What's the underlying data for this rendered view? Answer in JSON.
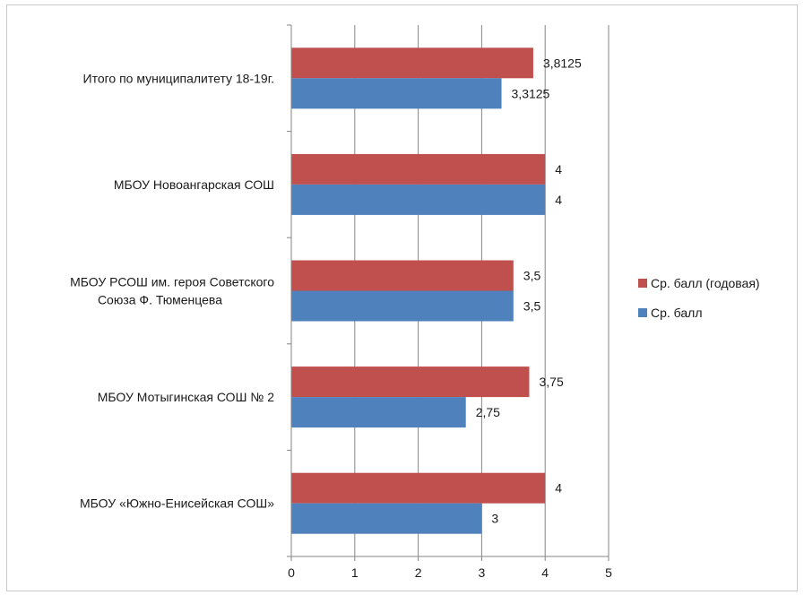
{
  "chart_data": {
    "type": "bar",
    "orientation": "horizontal",
    "categories": [
      [
        "Итого по муниципалитету 18-19г."
      ],
      [
        "МБОУ Новоангарская СОШ"
      ],
      [
        "МБОУ РСОШ им. героя Советского",
        "Союза Ф. Тюменцева"
      ],
      [
        "МБОУ Мотыгинская СОШ  № 2"
      ],
      [
        "МБОУ «Южно-Енисейская СОШ»"
      ]
    ],
    "series": [
      {
        "name": "Ср. балл (годовая)",
        "color": "#c0504d",
        "values": [
          3.8125,
          4,
          3.5,
          3.75,
          4
        ],
        "labels": [
          "3,8125",
          "4",
          "3,5",
          "3,75",
          "4"
        ]
      },
      {
        "name": "Ср. балл",
        "color": "#4f81bd",
        "values": [
          3.3125,
          4,
          3.5,
          2.75,
          3
        ],
        "labels": [
          "3,3125",
          "4",
          "3,5",
          "2,75",
          "3"
        ]
      }
    ],
    "xlim": [
      0,
      5
    ],
    "xticks": [
      "0",
      "1",
      "2",
      "3",
      "4",
      "5"
    ],
    "grid": "vertical",
    "grid_color": "#868686",
    "legend_position": "right",
    "title": "",
    "xlabel": "",
    "ylabel": ""
  }
}
